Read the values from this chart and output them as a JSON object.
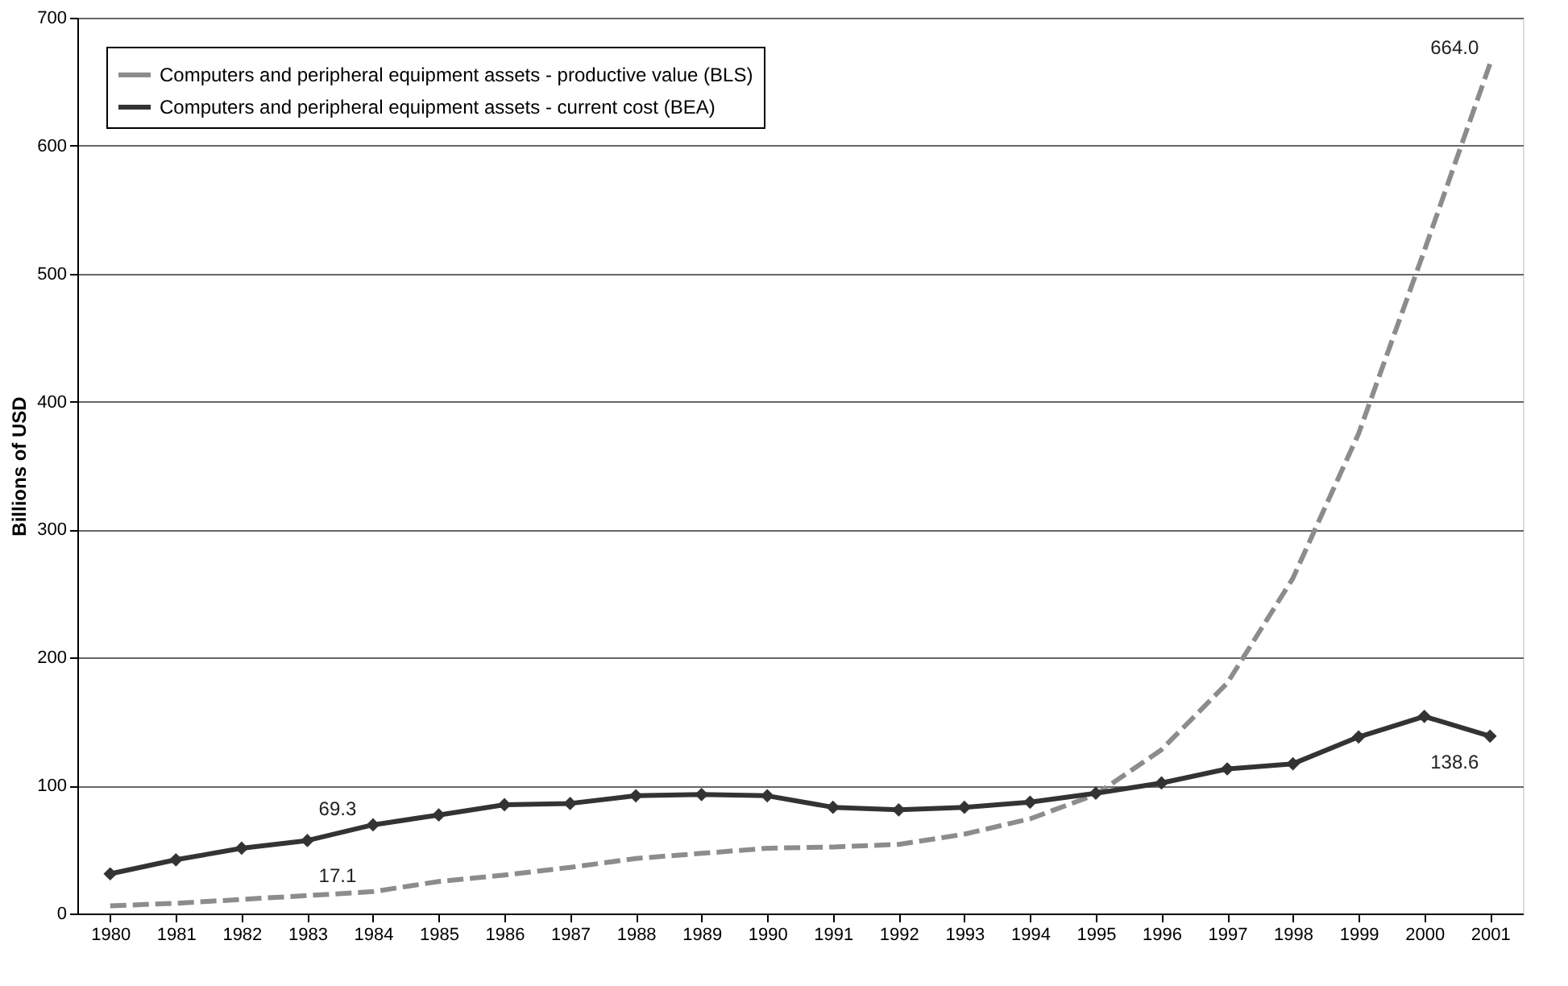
{
  "chart_data": {
    "type": "line",
    "ylabel": "Billions of USD",
    "categories": [
      "1980",
      "1981",
      "1982",
      "1983",
      "1984",
      "1985",
      "1986",
      "1987",
      "1988",
      "1989",
      "1990",
      "1991",
      "1992",
      "1993",
      "1994",
      "1995",
      "1996",
      "1997",
      "1998",
      "1999",
      "2000",
      "2001"
    ],
    "series": [
      {
        "name": "Computers and peripheral equipment assets - productive value (BLS)",
        "color": "#8c8c8c",
        "line_style": "dashed",
        "marker": "none",
        "values": [
          6,
          8,
          11,
          14,
          17.1,
          25,
          30,
          36,
          43,
          47,
          51,
          52,
          54,
          62,
          74,
          93,
          128,
          180,
          262,
          375,
          518,
          664.0
        ]
      },
      {
        "name": "Computers and peripheral equipment assets - current cost (BEA)",
        "color": "#333333",
        "line_style": "solid",
        "marker": "diamond",
        "values": [
          31,
          42,
          51,
          57,
          69.3,
          77,
          85,
          86,
          92,
          93,
          92,
          83,
          81,
          83,
          87,
          94,
          102,
          113,
          117,
          138,
          154,
          138.6
        ]
      }
    ],
    "annotations": [
      {
        "text": "69.3",
        "x": "1984",
        "y": 69.3
      },
      {
        "text": "17.1",
        "x": "1984",
        "y": 17.1
      },
      {
        "text": "664.0",
        "x": "2001",
        "y": 664.0
      },
      {
        "text": "138.6",
        "x": "2001",
        "y": 138.6
      }
    ],
    "ylim": [
      0,
      700
    ],
    "yticks": [
      0,
      100,
      200,
      300,
      400,
      500,
      600,
      700
    ],
    "grid": "y",
    "legend": "top left"
  }
}
